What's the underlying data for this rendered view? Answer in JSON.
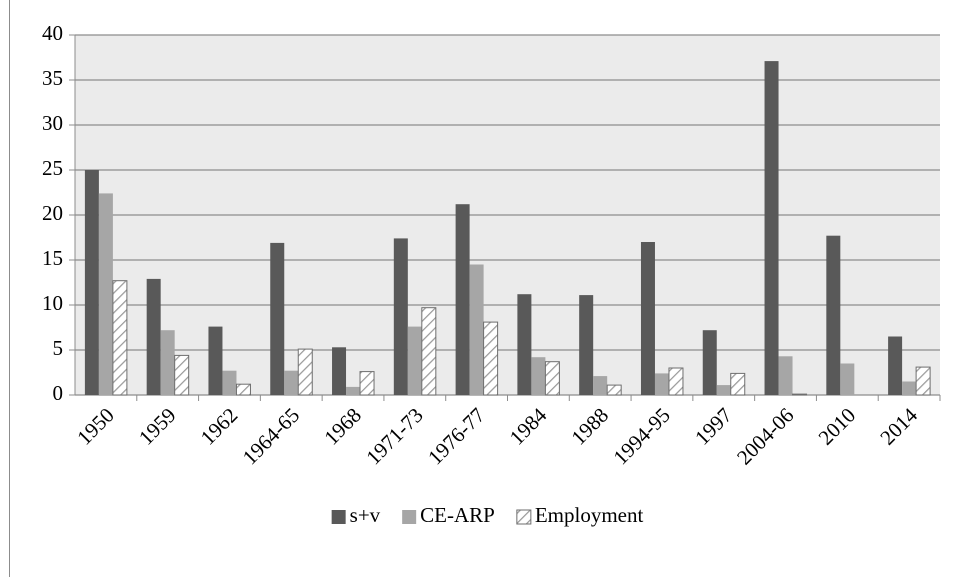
{
  "chart_data": {
    "type": "bar",
    "categories": [
      "1950",
      "1959",
      "1962",
      "1964-65",
      "1968",
      "1971-73",
      "1976-77",
      "1984",
      "1988",
      "1994-95",
      "1997",
      "2004-06",
      "2010",
      "2014"
    ],
    "series": [
      {
        "name": "s+v",
        "color": "#595959",
        "values": [
          25,
          12.9,
          7.6,
          16.9,
          5.3,
          17.4,
          21.2,
          11.2,
          11.1,
          17.0,
          7.2,
          37.1,
          17.7,
          6.5
        ]
      },
      {
        "name": "CE-ARP",
        "color": "#a6a6a6",
        "values": [
          22.4,
          7.2,
          2.7,
          2.7,
          0.9,
          7.6,
          14.5,
          4.2,
          2.1,
          2.4,
          1.1,
          4.3,
          3.5,
          1.5
        ]
      },
      {
        "name": "Employment",
        "color": "#ffffff",
        "hatch": true,
        "values": [
          12.7,
          4.4,
          1.2,
          5.1,
          2.6,
          9.7,
          8.1,
          3.7,
          1.1,
          3.0,
          2.4,
          0.1,
          null,
          3.1
        ]
      }
    ],
    "ylim": [
      0,
      40
    ],
    "yticks": [
      0,
      5,
      10,
      15,
      20,
      25,
      30,
      35,
      40
    ],
    "grid": true,
    "legend": "bottom"
  }
}
